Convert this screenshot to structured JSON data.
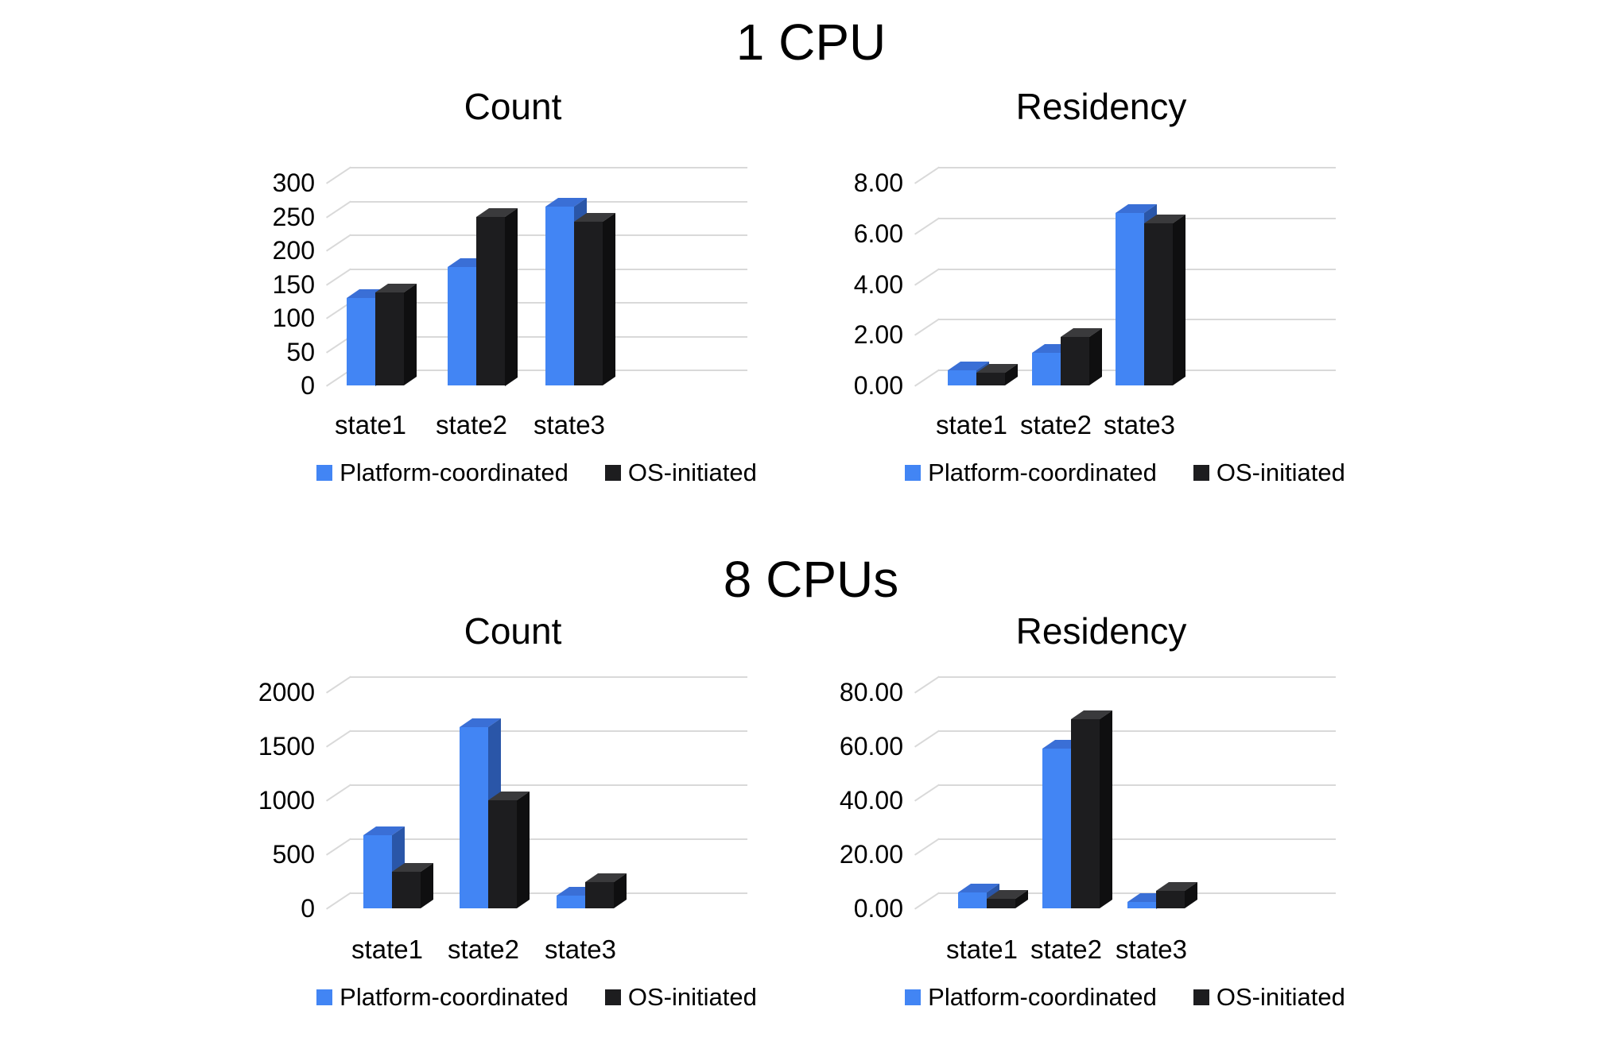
{
  "sections": [
    {
      "title": "1 CPU"
    },
    {
      "title": "8 CPUs"
    }
  ],
  "legend": {
    "items": [
      {
        "label": "Platform-coordinated",
        "color": "#4285f4"
      },
      {
        "label": "OS-initiated",
        "color": "#1d1d1f"
      }
    ]
  },
  "chart_data": [
    {
      "id": "cpu1-count",
      "group": "1 CPU",
      "type": "bar",
      "style": "3d-column",
      "title": "Count",
      "categories": [
        "state1",
        "state2",
        "state3"
      ],
      "series": [
        {
          "name": "Platform-coordinated",
          "color": "#4285f4",
          "values": [
            130,
            175,
            265
          ]
        },
        {
          "name": "OS-initiated",
          "color": "#1d1d1f",
          "values": [
            138,
            250,
            242
          ]
        }
      ],
      "xlabel": "",
      "ylabel": "",
      "ylim": [
        0,
        300
      ],
      "yticks": [
        0,
        50,
        100,
        150,
        200,
        250,
        300
      ],
      "ytick_labels": [
        "0",
        "50",
        "100",
        "150",
        "200",
        "250",
        "300"
      ],
      "grid": true,
      "legend_position": "bottom"
    },
    {
      "id": "cpu1-residency",
      "group": "1 CPU",
      "type": "bar",
      "style": "3d-column",
      "title": "Residency",
      "categories": [
        "state1",
        "state2",
        "state3"
      ],
      "series": [
        {
          "name": "Platform-coordinated",
          "color": "#4285f4",
          "values": [
            0.6,
            1.3,
            6.8
          ]
        },
        {
          "name": "OS-initiated",
          "color": "#1d1d1f",
          "values": [
            0.5,
            1.9,
            6.4
          ]
        }
      ],
      "xlabel": "",
      "ylabel": "",
      "ylim": [
        0,
        8
      ],
      "yticks": [
        0,
        2,
        4,
        6,
        8
      ],
      "ytick_labels": [
        "0.00",
        "2.00",
        "4.00",
        "6.00",
        "8.00"
      ],
      "grid": true,
      "legend_position": "bottom"
    },
    {
      "id": "cpu8-count",
      "group": "8 CPUs",
      "type": "bar",
      "style": "3d-column",
      "title": "Count",
      "categories": [
        "state1",
        "state2",
        "state3"
      ],
      "series": [
        {
          "name": "Platform-coordinated",
          "color": "#4285f4",
          "values": [
            680,
            1680,
            120
          ]
        },
        {
          "name": "OS-initiated",
          "color": "#1d1d1f",
          "values": [
            340,
            1000,
            240
          ]
        }
      ],
      "xlabel": "",
      "ylabel": "",
      "ylim": [
        0,
        2000
      ],
      "yticks": [
        0,
        500,
        1000,
        1500,
        2000
      ],
      "ytick_labels": [
        "0",
        "500",
        "1000",
        "1500",
        "2000"
      ],
      "grid": true,
      "legend_position": "bottom"
    },
    {
      "id": "cpu8-residency",
      "group": "8 CPUs",
      "type": "bar",
      "style": "3d-column",
      "title": "Residency",
      "categories": [
        "state1",
        "state2",
        "state3"
      ],
      "series": [
        {
          "name": "Platform-coordinated",
          "color": "#4285f4",
          "values": [
            6,
            59,
            2.5
          ]
        },
        {
          "name": "OS-initiated",
          "color": "#1d1d1f",
          "values": [
            3.5,
            70,
            6.5
          ]
        }
      ],
      "xlabel": "",
      "ylabel": "",
      "ylim": [
        0,
        80
      ],
      "yticks": [
        0,
        20,
        40,
        60,
        80
      ],
      "ytick_labels": [
        "0.00",
        "20.00",
        "40.00",
        "60.00",
        "80.00"
      ],
      "grid": true,
      "legend_position": "bottom"
    }
  ]
}
